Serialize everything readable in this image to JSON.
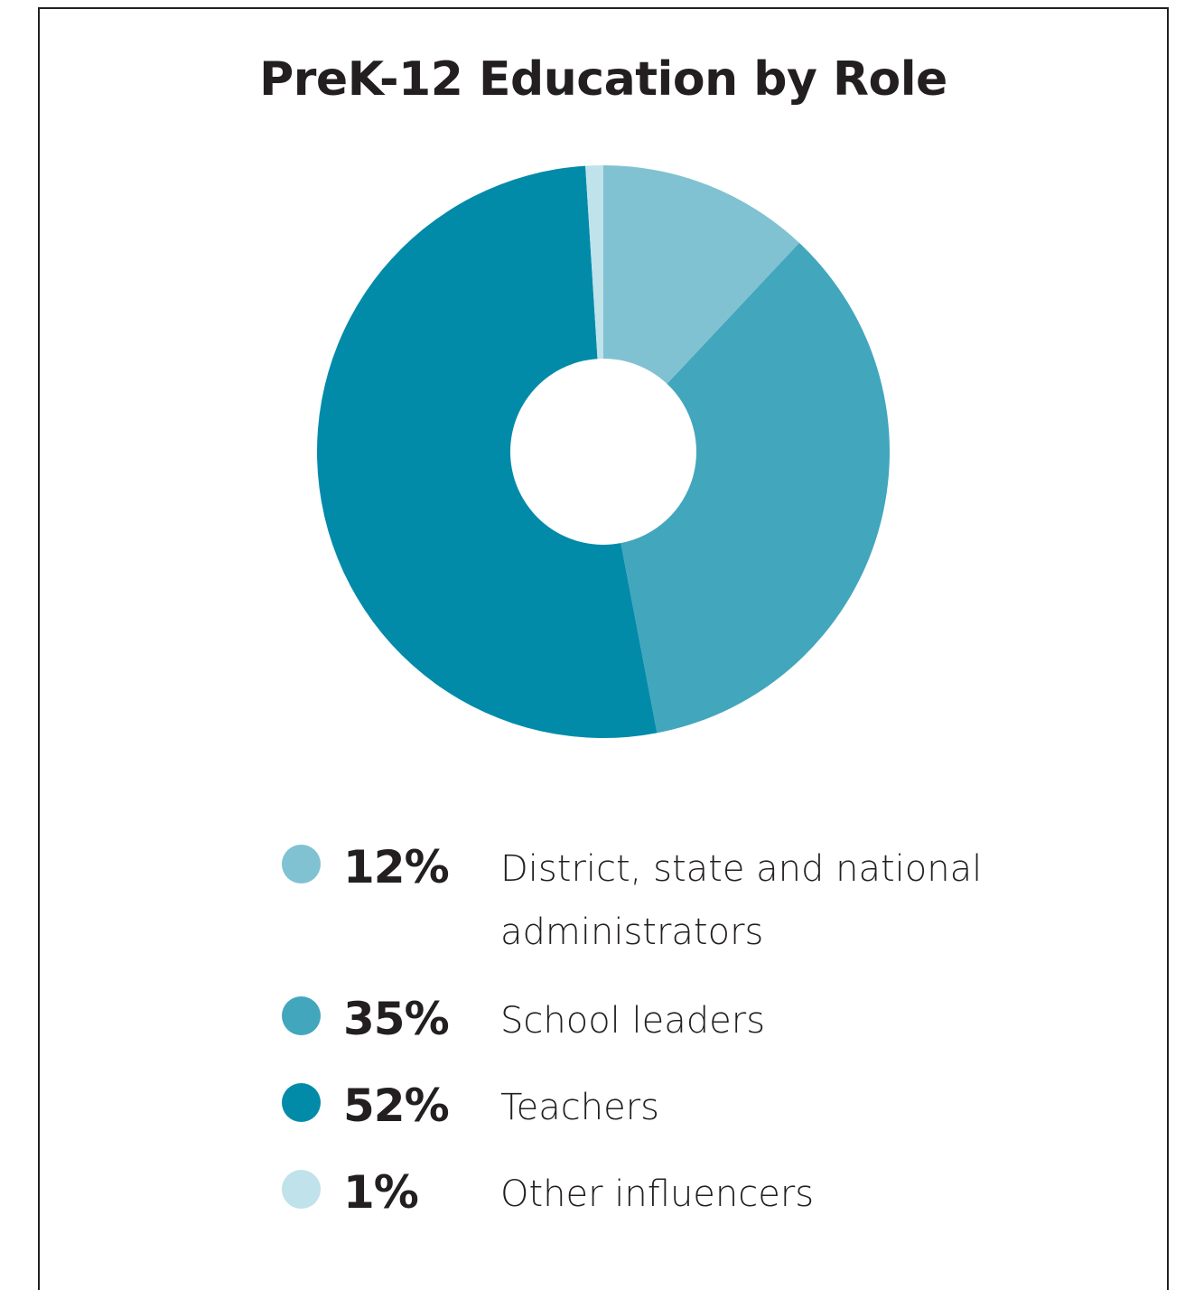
{
  "chart_data": {
    "type": "pie",
    "title": "PreK-12 Education by Role",
    "slices": [
      {
        "label": "District, state and national administrators",
        "value": 12,
        "value_label": "12%",
        "color": "#80c2d1"
      },
      {
        "label": "School leaders",
        "value": 35,
        "value_label": "35%",
        "color": "#42a6bd"
      },
      {
        "label": "Teachers",
        "value": 52,
        "value_label": "52%",
        "color": "#028aa9"
      },
      {
        "label": "Other influencers",
        "value": 1,
        "value_label": "1%",
        "color": "#c0e2ea"
      }
    ],
    "donut": true,
    "start": "top",
    "direction": "clockwise",
    "legend_position": "bottom"
  }
}
